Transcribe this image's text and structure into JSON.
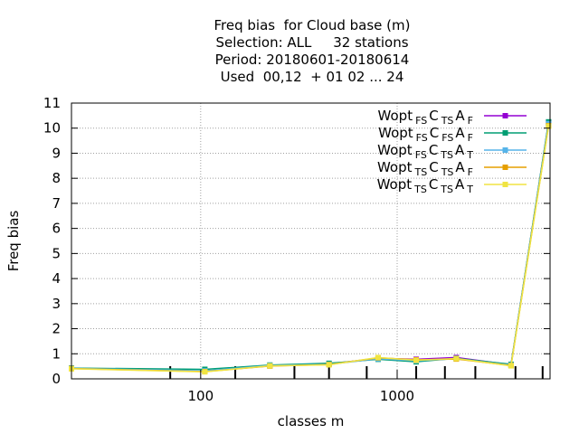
{
  "chart_data": {
    "type": "line",
    "title_lines": [
      "Freq bias  for Cloud base (m)",
      "Selection: ALL     32 stations",
      "Period: 20180601-20180614",
      "Used  00,12  + 01 02 ... 24"
    ],
    "xlabel": "classes m",
    "ylabel": "Freq bias",
    "x_scale": "log",
    "xlim": [
      22,
      6000
    ],
    "ylim": [
      0,
      11
    ],
    "x_ticks": [
      100,
      1000
    ],
    "x_tick_labels": [
      "100",
      "1000"
    ],
    "x_minor_ticks": [
      70,
      150,
      300,
      450,
      700,
      1250,
      1750,
      2500,
      4000,
      5500
    ],
    "y_ticks": [
      0,
      1,
      2,
      3,
      4,
      5,
      6,
      7,
      8,
      9,
      10,
      11
    ],
    "y_tick_labels": [
      "0",
      "1",
      "2",
      "3",
      "4",
      "5",
      "6",
      "7",
      "8",
      "9",
      "10",
      "11"
    ],
    "grid": true,
    "legend_position": "top-right",
    "x": [
      22,
      105,
      225,
      450,
      800,
      1250,
      2000,
      3800,
      5900
    ],
    "series": [
      {
        "name_main": "Wopt",
        "name_parts": [
          [
            "FS",
            "C"
          ],
          [
            "TS",
            "A"
          ],
          [
            "F",
            ""
          ]
        ],
        "color": "#9400d3",
        "values": [
          0.42,
          0.3,
          0.52,
          0.6,
          0.82,
          0.78,
          0.85,
          0.56,
          10.22
        ]
      },
      {
        "name_main": "Wopt",
        "name_parts": [
          [
            "FS",
            "C"
          ],
          [
            "FS",
            "A"
          ],
          [
            "F",
            ""
          ]
        ],
        "color": "#009e73",
        "values": [
          0.43,
          0.38,
          0.55,
          0.62,
          0.78,
          0.68,
          0.82,
          0.58,
          10.25
        ]
      },
      {
        "name_main": "Wopt",
        "name_parts": [
          [
            "FS",
            "C"
          ],
          [
            "TS",
            "A"
          ],
          [
            "T",
            ""
          ]
        ],
        "color": "#56b4e9",
        "values": [
          0.42,
          0.32,
          0.53,
          0.58,
          0.8,
          0.72,
          0.8,
          0.55,
          10.18
        ]
      },
      {
        "name_main": "Wopt",
        "name_parts": [
          [
            "TS",
            "C"
          ],
          [
            "TS",
            "A"
          ],
          [
            "F",
            ""
          ]
        ],
        "color": "#e69f00",
        "values": [
          0.41,
          0.29,
          0.51,
          0.57,
          0.84,
          0.76,
          0.79,
          0.53,
          10.1
        ]
      },
      {
        "name_main": "Wopt",
        "name_parts": [
          [
            "TS",
            "C"
          ],
          [
            "TS",
            "A"
          ],
          [
            "T",
            ""
          ]
        ],
        "color": "#f0e442",
        "values": [
          0.4,
          0.28,
          0.52,
          0.56,
          0.85,
          0.74,
          0.81,
          0.52,
          10.08
        ]
      }
    ]
  }
}
